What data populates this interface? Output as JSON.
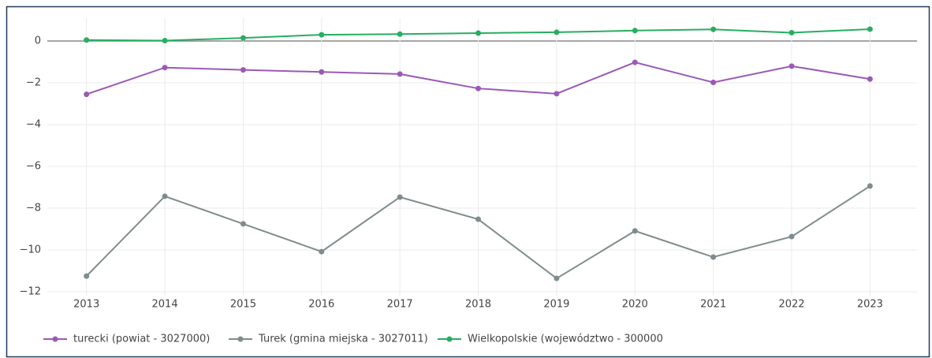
{
  "chart_data": {
    "type": "line",
    "x": [
      2013,
      2014,
      2015,
      2016,
      2017,
      2018,
      2019,
      2020,
      2021,
      2022,
      2023
    ],
    "xlim": [
      2012.5,
      2023.6
    ],
    "xticks": [
      2013,
      2014,
      2015,
      2016,
      2017,
      2018,
      2019,
      2020,
      2021,
      2022,
      2023
    ],
    "ylim": [
      -12.2,
      1.1
    ],
    "yticks": [
      0,
      {
        "value": -2,
        "label": "−2"
      },
      {
        "value": -4,
        "label": "−4"
      },
      {
        "value": -6,
        "label": "−6"
      },
      {
        "value": -8,
        "label": "−8"
      },
      {
        "value": -10,
        "label": "−10"
      },
      {
        "value": -12,
        "label": "−12"
      }
    ],
    "grid": true,
    "series": [
      {
        "name": "turecki (powiat - 3027000)",
        "color": "#9b59b6",
        "values": [
          -2.55,
          -1.27,
          -1.38,
          -1.48,
          -1.58,
          -2.27,
          -2.52,
          -1.02,
          -1.98,
          -1.2,
          -1.82
        ]
      },
      {
        "name": "Turek (gmina miejska - 3027011)",
        "color": "#7f8c8d",
        "values": [
          -11.25,
          -7.43,
          -8.75,
          -10.08,
          -7.47,
          -8.53,
          -11.36,
          -9.09,
          -10.34,
          -9.36,
          -6.94
        ]
      },
      {
        "name": "Wielkopolskie (województwo - 300000",
        "color": "#27ae60",
        "values": [
          0.05,
          0.02,
          0.15,
          0.3,
          0.33,
          0.38,
          0.42,
          0.5,
          0.56,
          0.4,
          0.57
        ]
      }
    ]
  }
}
